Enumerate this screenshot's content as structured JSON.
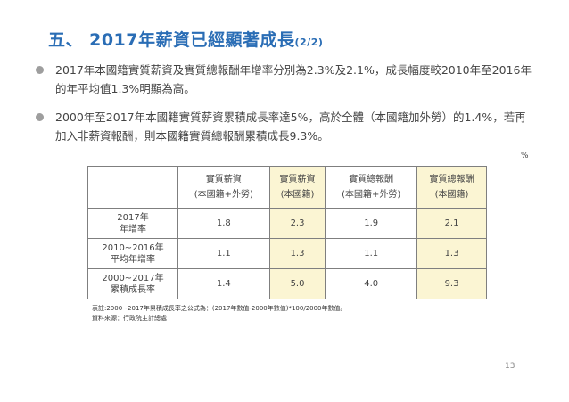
{
  "title": {
    "main": "五、 2017年薪資已經顯著成長",
    "sub": "(2/2)"
  },
  "bullets": [
    "2017年本國籍實質薪資及實質總報酬年增率分別為2.3%及2.1%，成長幅度較2010年至2016年的年平均值1.3%明顯為高。",
    "2000年至2017年本國籍實質薪資累積成長率達5%，高於全體（本國籍加外勞）的1.4%，若再加入非薪資報酬，則本國籍實質總報酬累積成長9.3%。"
  ],
  "table": {
    "unit": "%",
    "headers": [
      {
        "line1": "實質薪資",
        "line2": "(本國籍+外勞)"
      },
      {
        "line1": "實質薪資",
        "line2": "(本國籍)"
      },
      {
        "line1": "實質總報酬",
        "line2": "(本國籍+外勞)"
      },
      {
        "line1": "實質總報酬",
        "line2": "(本國籍)"
      }
    ],
    "rows": [
      {
        "label1": "2017年",
        "label2": "年增率",
        "values": [
          "1.8",
          "2.3",
          "1.9",
          "2.1"
        ]
      },
      {
        "label1": "2010~2016年",
        "label2": "平均年增率",
        "values": [
          "1.1",
          "1.3",
          "1.1",
          "1.3"
        ]
      },
      {
        "label1": "2000~2017年",
        "label2": "累積成長率",
        "values": [
          "1.4",
          "5.0",
          "4.0",
          "9.3"
        ]
      }
    ],
    "highlight_color": "#fbf5d3"
  },
  "notes": {
    "formula": "表註:2000~2017年累積成長率之公式為：(2017年數值-2000年數值)*100/2000年數值。",
    "source": "資料來源：行政院主計總處"
  },
  "page_number": "13",
  "colors": {
    "title": "#2a6db5",
    "bullet": "#9e9e9e"
  }
}
